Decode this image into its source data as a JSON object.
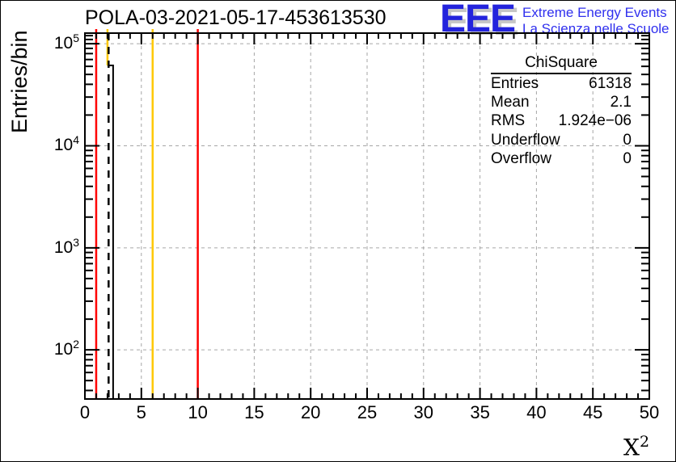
{
  "title": "POLA-03-2021-05-17-453613530",
  "logo": {
    "acronym": "EEE",
    "line1": "Extreme Energy Events",
    "line2": "La Scienza nelle Scuole",
    "blue": "#2424dd"
  },
  "stats": {
    "title": "ChiSquare",
    "rows": [
      {
        "label": "Entries",
        "value": "61318"
      },
      {
        "label": "Mean",
        "value": "2.1"
      },
      {
        "label": "RMS",
        "value": "1.924e−06"
      },
      {
        "label": "Underflow",
        "value": "0"
      },
      {
        "label": "Overflow",
        "value": "0"
      }
    ]
  },
  "axis_labels": {
    "y_title": "Entries/bin",
    "x_base": "X",
    "x_sup": "2"
  },
  "chart_data": {
    "type": "bar",
    "title": "POLA-03-2021-05-17-453613530",
    "xlabel": "X^2",
    "ylabel": "Entries/bin",
    "grid": true,
    "grid_color": "#a6a6a6",
    "x_axis": {
      "min": 0,
      "max": 50,
      "major_tick_step": 5,
      "minor_tick_step": 1,
      "major_tick_values": [
        0,
        5,
        10,
        15,
        20,
        25,
        30,
        35,
        40,
        45,
        50
      ],
      "tick_labels": [
        "0",
        "5",
        "10",
        "15",
        "20",
        "25",
        "30",
        "35",
        "40",
        "45",
        "50"
      ]
    },
    "y_axis": {
      "scale": "log",
      "min": 33,
      "max": 127000,
      "decade_exponents": [
        2,
        3,
        4,
        5
      ],
      "extra_minor_ticks": [
        110000,
        120000
      ]
    },
    "bins": [
      {
        "x_low": 2.0,
        "x_high": 2.5,
        "count": 61318
      }
    ],
    "marker_lines": [
      {
        "x": 1,
        "color": "#ff0000",
        "style": "solid",
        "span": "full"
      },
      {
        "x": 2,
        "color": "#ffc800",
        "style": "solid",
        "span": "top-to-peak"
      },
      {
        "x": 2.1,
        "color": "#000000",
        "style": "dashed",
        "span": "frame"
      },
      {
        "x": 6,
        "color": "#ffc800",
        "style": "solid",
        "span": "full"
      },
      {
        "x": 10,
        "color": "#ff0000",
        "style": "solid",
        "span": "full"
      }
    ]
  }
}
